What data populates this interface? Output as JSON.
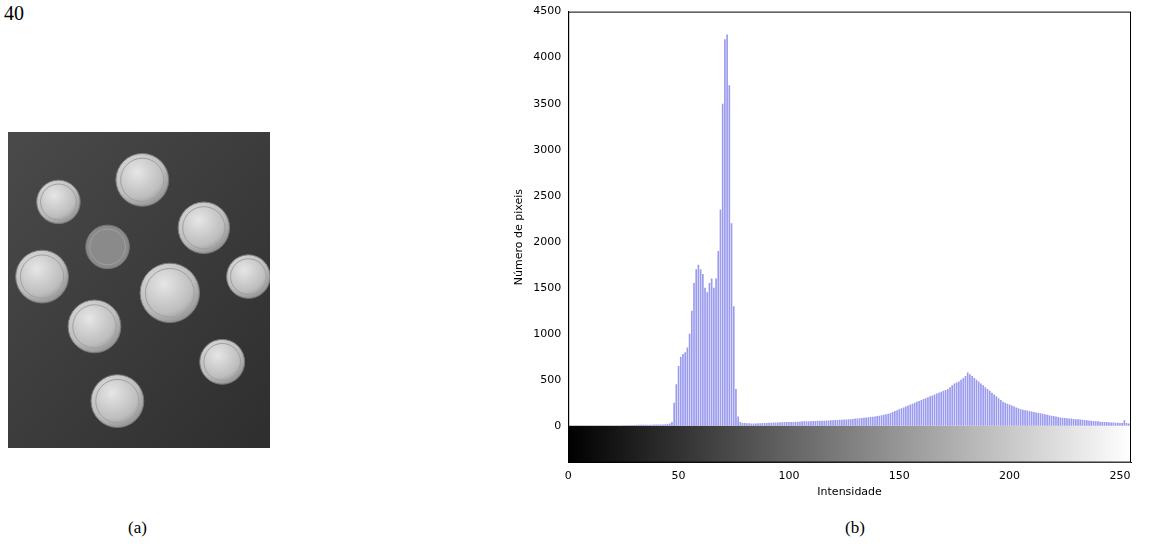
{
  "page_number": "40",
  "figure": {
    "a": {
      "label": "(a)"
    },
    "b": {
      "label": "(b)"
    }
  },
  "chart_data": {
    "type": "bar",
    "x_label": "Intensidade",
    "y_label": "Número de pixeis",
    "color": "#9a9aee",
    "grid": false,
    "xlim": [
      0,
      255
    ],
    "xticks": [
      0,
      50,
      100,
      150,
      200,
      250
    ],
    "ylim": [
      -400,
      4500
    ],
    "yticks": [
      0,
      500,
      1000,
      1500,
      2000,
      2500,
      3000,
      3500,
      4000,
      4500
    ],
    "x": [
      0,
      1,
      2,
      3,
      4,
      5,
      6,
      7,
      8,
      9,
      10,
      11,
      12,
      13,
      14,
      15,
      16,
      17,
      18,
      19,
      20,
      21,
      22,
      23,
      24,
      25,
      26,
      27,
      28,
      29,
      30,
      31,
      32,
      33,
      34,
      35,
      36,
      37,
      38,
      39,
      40,
      41,
      42,
      43,
      44,
      45,
      46,
      47,
      48,
      49,
      50,
      51,
      52,
      53,
      54,
      55,
      56,
      57,
      58,
      59,
      60,
      61,
      62,
      63,
      64,
      65,
      66,
      67,
      68,
      69,
      70,
      71,
      72,
      73,
      74,
      75,
      76,
      77,
      78,
      79,
      80,
      81,
      82,
      83,
      84,
      85,
      86,
      87,
      88,
      89,
      90,
      91,
      92,
      93,
      94,
      95,
      96,
      97,
      98,
      99,
      100,
      101,
      102,
      103,
      104,
      105,
      106,
      107,
      108,
      109,
      110,
      111,
      112,
      113,
      114,
      115,
      116,
      117,
      118,
      119,
      120,
      121,
      122,
      123,
      124,
      125,
      126,
      127,
      128,
      129,
      130,
      131,
      132,
      133,
      134,
      135,
      136,
      137,
      138,
      139,
      140,
      141,
      142,
      143,
      144,
      145,
      146,
      147,
      148,
      149,
      150,
      151,
      152,
      153,
      154,
      155,
      156,
      157,
      158,
      159,
      160,
      161,
      162,
      163,
      164,
      165,
      166,
      167,
      168,
      169,
      170,
      171,
      172,
      173,
      174,
      175,
      176,
      177,
      178,
      179,
      180,
      181,
      182,
      183,
      184,
      185,
      186,
      187,
      188,
      189,
      190,
      191,
      192,
      193,
      194,
      195,
      196,
      197,
      198,
      199,
      200,
      201,
      202,
      203,
      204,
      205,
      206,
      207,
      208,
      209,
      210,
      211,
      212,
      213,
      214,
      215,
      216,
      217,
      218,
      219,
      220,
      221,
      222,
      223,
      224,
      225,
      226,
      227,
      228,
      229,
      230,
      231,
      232,
      233,
      234,
      235,
      236,
      237,
      238,
      239,
      240,
      241,
      242,
      243,
      244,
      245,
      246,
      247,
      248,
      249,
      250,
      251,
      252,
      253,
      254,
      255
    ],
    "values": [
      0,
      0,
      0,
      0,
      0,
      0,
      0,
      0,
      0,
      0,
      0,
      0,
      0,
      0,
      0,
      0,
      0,
      0,
      0,
      0,
      0,
      0,
      0,
      0,
      0,
      5,
      5,
      5,
      8,
      8,
      8,
      10,
      10,
      10,
      10,
      12,
      12,
      12,
      12,
      15,
      15,
      15,
      15,
      15,
      18,
      20,
      25,
      40,
      250,
      450,
      650,
      750,
      780,
      800,
      850,
      1000,
      1250,
      1550,
      1700,
      1750,
      1700,
      1650,
      1500,
      1450,
      1550,
      1600,
      1500,
      1600,
      1900,
      2350,
      3500,
      4200,
      4250,
      3700,
      2200,
      1300,
      400,
      100,
      40,
      30,
      30,
      28,
      28,
      25,
      25,
      25,
      28,
      28,
      30,
      30,
      30,
      32,
      32,
      35,
      35,
      35,
      38,
      38,
      40,
      40,
      40,
      42,
      42,
      45,
      45,
      45,
      48,
      48,
      50,
      50,
      50,
      52,
      52,
      55,
      55,
      55,
      55,
      58,
      58,
      60,
      60,
      62,
      62,
      65,
      65,
      68,
      68,
      70,
      72,
      75,
      78,
      80,
      82,
      85,
      88,
      90,
      92,
      95,
      98,
      100,
      105,
      110,
      115,
      120,
      125,
      130,
      140,
      150,
      160,
      170,
      180,
      190,
      200,
      210,
      220,
      230,
      240,
      250,
      260,
      270,
      280,
      290,
      300,
      310,
      320,
      330,
      340,
      350,
      360,
      370,
      380,
      390,
      400,
      420,
      440,
      460,
      470,
      480,
      500,
      520,
      540,
      580,
      560,
      540,
      520,
      500,
      480,
      460,
      440,
      420,
      400,
      380,
      360,
      340,
      320,
      300,
      280,
      260,
      250,
      240,
      230,
      220,
      210,
      200,
      190,
      180,
      175,
      170,
      165,
      160,
      155,
      150,
      145,
      140,
      135,
      130,
      125,
      120,
      115,
      110,
      105,
      100,
      95,
      90,
      88,
      85,
      82,
      80,
      78,
      75,
      72,
      70,
      68,
      65,
      62,
      60,
      58,
      55,
      52,
      50,
      48,
      45,
      42,
      40,
      40,
      38,
      36,
      35,
      34,
      32,
      30,
      30,
      60,
      30,
      25,
      20
    ]
  }
}
